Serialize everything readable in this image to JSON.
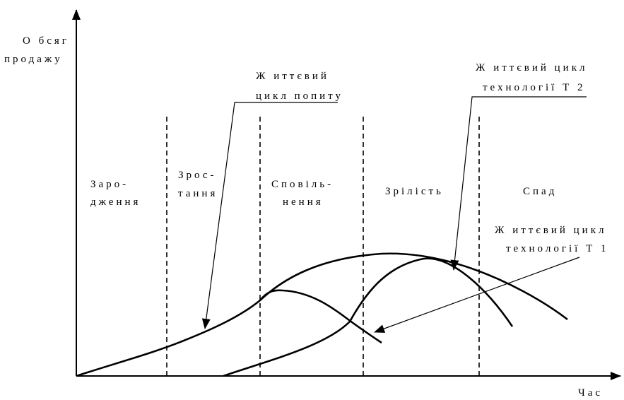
{
  "axes": {
    "y_label": [
      "О бсяг",
      "продажу"
    ],
    "x_label": "Час"
  },
  "stages": [
    {
      "lines": [
        "Заро-",
        "дження"
      ]
    },
    {
      "lines": [
        "Зрос-",
        "тання"
      ]
    },
    {
      "lines": [
        "Сповіль-",
        "нення"
      ]
    },
    {
      "lines": [
        "Зрілість"
      ]
    },
    {
      "lines": [
        "Спад"
      ]
    }
  ],
  "labels": {
    "demand": [
      "Ж иттєвий",
      "цикл попиту"
    ],
    "t2": [
      "Ж иттєвий цикл",
      "технології Т 2"
    ],
    "t1": [
      "Ж иттєвий цикл",
      "технології Т 1"
    ]
  }
}
